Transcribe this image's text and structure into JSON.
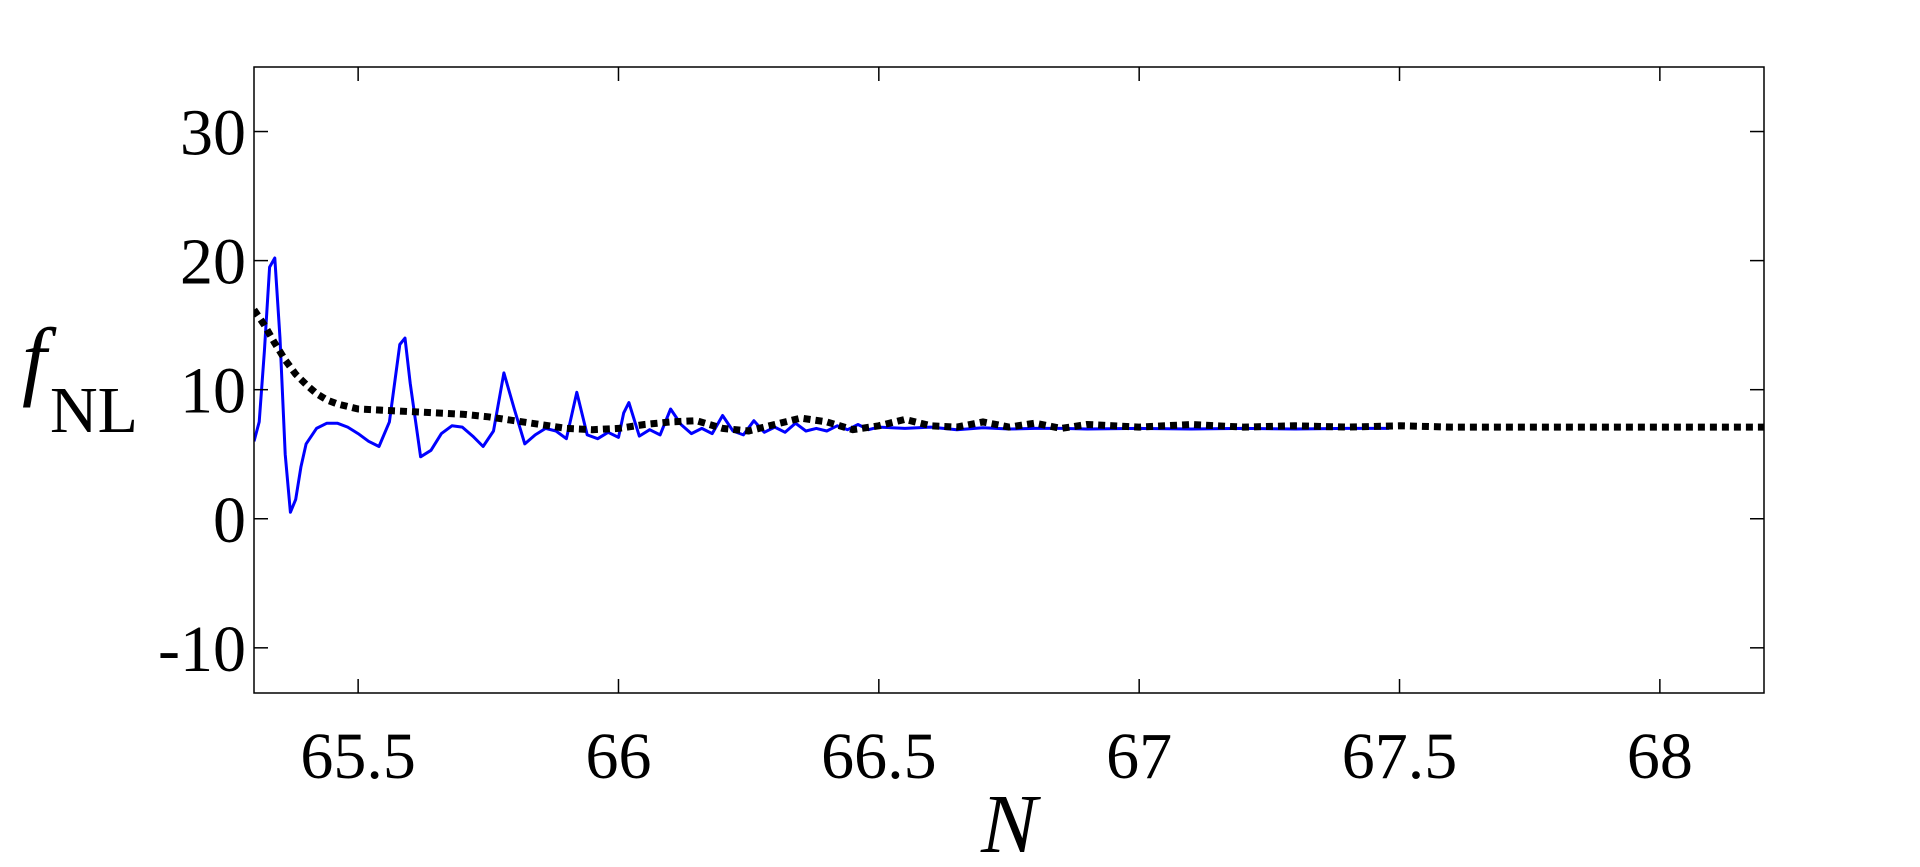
{
  "chart_data": {
    "type": "line",
    "title": "",
    "xlabel": "N",
    "ylabel_main": "f",
    "ylabel_sub": "NL",
    "xlim": [
      65.3,
      68.2
    ],
    "ylim": [
      -13.5,
      35
    ],
    "xticks": [
      65.5,
      66,
      66.5,
      67,
      67.5,
      68
    ],
    "xtick_labels": [
      "65.5",
      "66",
      "66.5",
      "67",
      "67.5",
      "68"
    ],
    "yticks": [
      -10,
      0,
      10,
      20,
      30
    ],
    "ytick_labels": [
      "-10",
      "0",
      "10",
      "20",
      "30"
    ],
    "grid": false,
    "legend": "none",
    "series": [
      {
        "color": "#0000ff",
        "style": "solid",
        "x": [
          65.3,
          65.31,
          65.32,
          65.33,
          65.34,
          65.35,
          65.36,
          65.37,
          65.38,
          65.39,
          65.4,
          65.42,
          65.44,
          65.46,
          65.48,
          65.5,
          65.52,
          65.54,
          65.56,
          65.58,
          65.59,
          65.6,
          65.62,
          65.64,
          65.66,
          65.68,
          65.7,
          65.72,
          65.74,
          65.76,
          65.78,
          65.8,
          65.82,
          65.84,
          65.86,
          65.88,
          65.9,
          65.92,
          65.94,
          65.96,
          65.98,
          66.0,
          66.01,
          66.02,
          66.04,
          66.06,
          66.08,
          66.1,
          66.12,
          66.14,
          66.16,
          66.18,
          66.2,
          66.22,
          66.24,
          66.26,
          66.28,
          66.3,
          66.32,
          66.34,
          66.36,
          66.38,
          66.4,
          66.42,
          66.44,
          66.46,
          66.48,
          66.5,
          66.55,
          66.6,
          66.65,
          66.7,
          66.75,
          66.8,
          66.85,
          66.9,
          67.0,
          67.1,
          67.2,
          67.3,
          67.4,
          67.48
        ],
        "y": [
          6.0,
          7.5,
          13.0,
          19.5,
          20.2,
          14.0,
          5.0,
          0.5,
          1.5,
          4.0,
          5.8,
          7.0,
          7.4,
          7.4,
          7.1,
          6.6,
          6.0,
          5.6,
          7.5,
          13.5,
          14.0,
          10.5,
          4.8,
          5.3,
          6.6,
          7.2,
          7.1,
          6.4,
          5.6,
          6.8,
          11.3,
          8.5,
          5.8,
          6.5,
          7.0,
          6.8,
          6.2,
          9.8,
          6.5,
          6.2,
          6.7,
          6.3,
          8.2,
          9.0,
          6.4,
          6.9,
          6.5,
          8.5,
          7.3,
          6.6,
          7.0,
          6.6,
          8.0,
          6.8,
          6.5,
          7.6,
          6.7,
          7.1,
          6.7,
          7.4,
          6.8,
          7.0,
          6.8,
          7.2,
          6.9,
          7.3,
          6.9,
          7.1,
          7.0,
          7.1,
          6.9,
          7.05,
          6.95,
          7.0,
          7.0,
          6.95,
          7.0,
          6.95,
          7.0,
          6.95,
          7.0,
          7.0
        ]
      },
      {
        "color": "#000000",
        "style": "dotted",
        "x": [
          65.3,
          65.32,
          65.34,
          65.36,
          65.38,
          65.4,
          65.42,
          65.44,
          65.46,
          65.48,
          65.5,
          65.55,
          65.6,
          65.65,
          65.7,
          65.75,
          65.8,
          65.85,
          65.9,
          65.95,
          66.0,
          66.05,
          66.1,
          66.15,
          66.2,
          66.25,
          66.3,
          66.35,
          66.4,
          66.45,
          66.5,
          66.55,
          66.6,
          66.65,
          66.7,
          66.75,
          66.8,
          66.85,
          66.9,
          67.0,
          67.1,
          67.2,
          67.3,
          67.4,
          67.5,
          67.6,
          67.8,
          68.0,
          68.2
        ],
        "y": [
          16.2,
          15.0,
          13.6,
          12.3,
          11.2,
          10.4,
          9.7,
          9.2,
          8.9,
          8.7,
          8.5,
          8.4,
          8.3,
          8.2,
          8.1,
          7.9,
          7.6,
          7.3,
          7.0,
          6.9,
          7.0,
          7.3,
          7.5,
          7.6,
          7.0,
          6.8,
          7.3,
          7.8,
          7.5,
          6.9,
          7.2,
          7.7,
          7.2,
          7.1,
          7.5,
          7.1,
          7.4,
          7.0,
          7.3,
          7.1,
          7.3,
          7.1,
          7.2,
          7.1,
          7.2,
          7.1,
          7.1,
          7.1,
          7.1
        ]
      }
    ]
  }
}
